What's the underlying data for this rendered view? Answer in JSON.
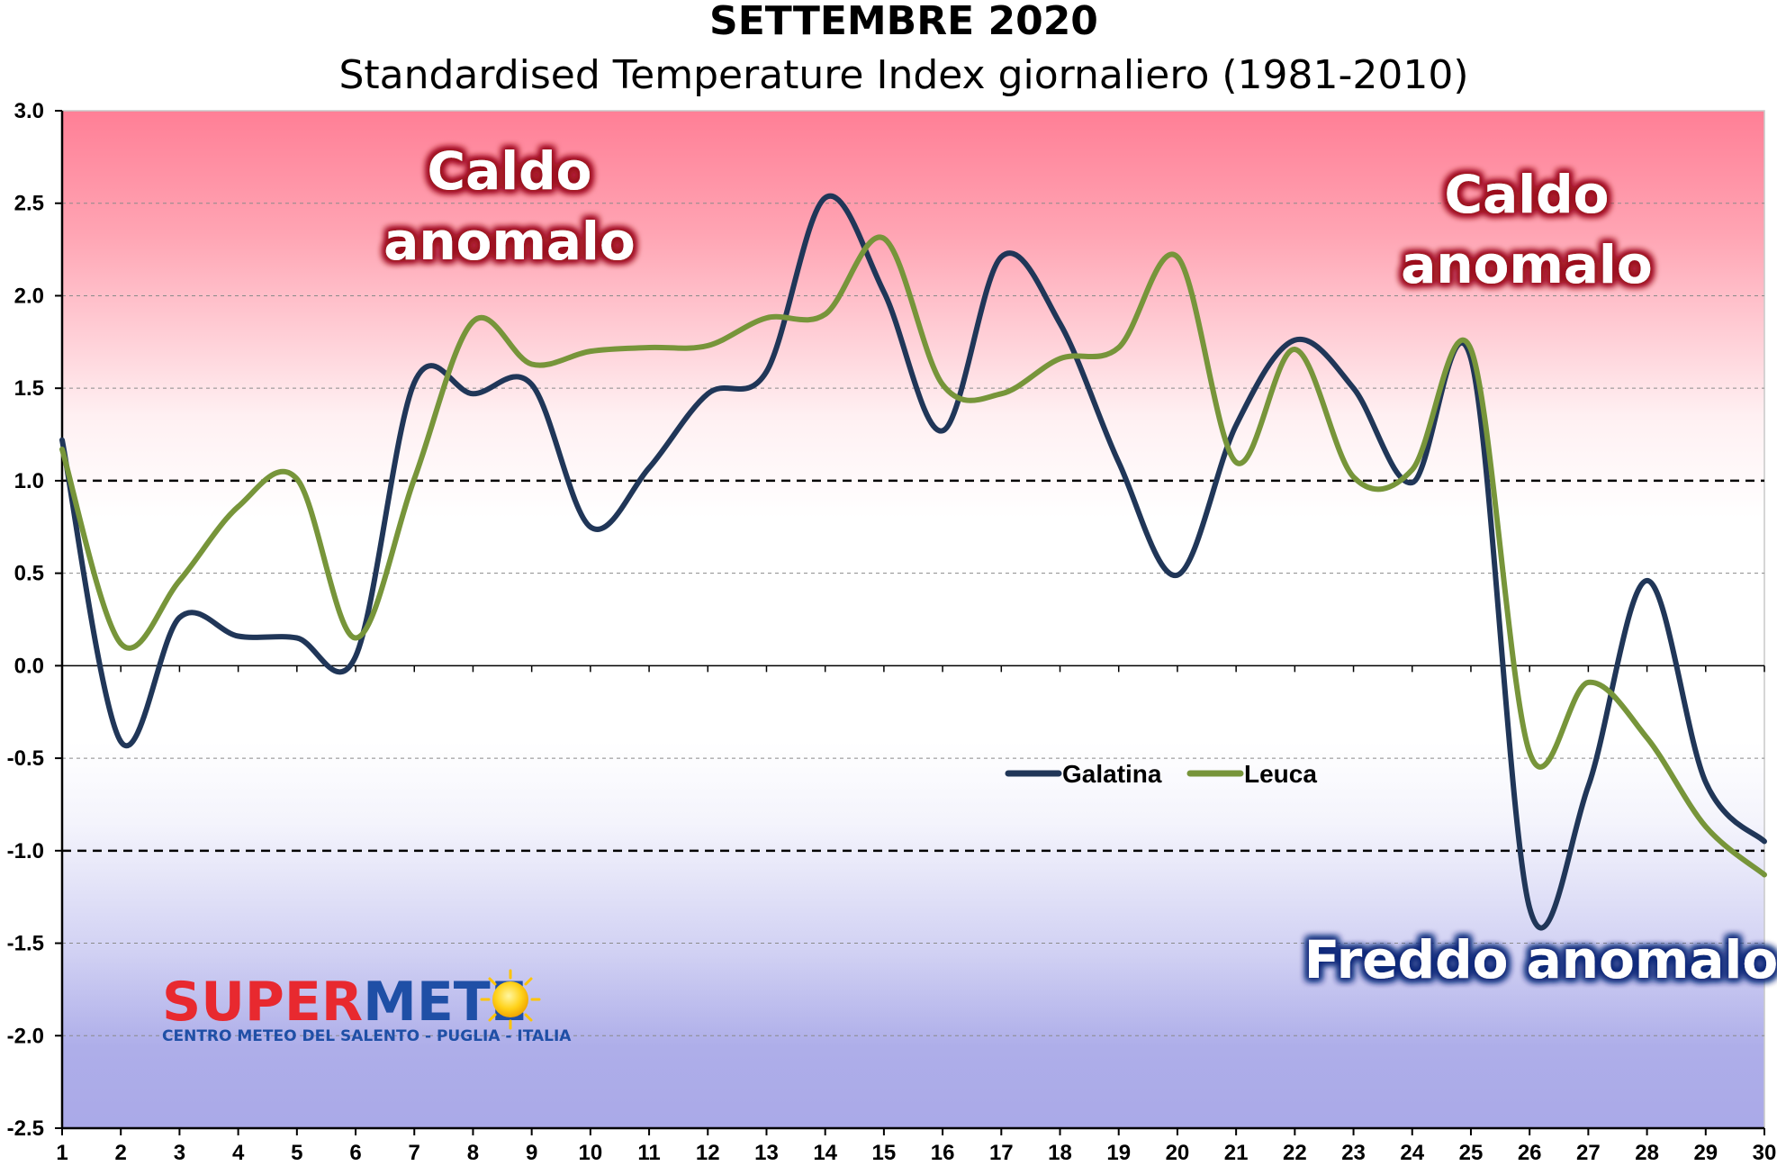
{
  "title": "SETTEMBRE 2020",
  "subtitle": "Standardised Temperature Index giornaliero (1981-2010)",
  "zones": {
    "warm_label_line1": "Caldo",
    "warm_label_line2": "anomalo",
    "cold_label": "Freddo anomalo"
  },
  "logo": {
    "part1": "SUPER",
    "part2": "METE",
    "subtitle": "CENTRO METEO DEL SALENTO - PUGLIA - ITALIA"
  },
  "colors": {
    "galatina": "#203658",
    "leuca": "#77953a",
    "warm_top": "#ff7f96",
    "cold_bottom": "#aaa9e8",
    "warm_glow": "#9b0a1e",
    "cold_glow": "#0d2a7a"
  },
  "chart_data": {
    "type": "line",
    "x": [
      1,
      2,
      3,
      4,
      5,
      6,
      7,
      8,
      9,
      10,
      11,
      12,
      13,
      14,
      15,
      16,
      17,
      18,
      19,
      20,
      21,
      22,
      23,
      24,
      25,
      26,
      27,
      28,
      29,
      30
    ],
    "xlim": [
      1,
      30
    ],
    "ylim": [
      -2.5,
      3.0
    ],
    "yticks": [
      "3.0",
      "2.5",
      "2.0",
      "1.5",
      "1.0",
      "0.5",
      "0.0",
      "-0.5",
      "-1.0",
      "-1.5",
      "-2.0",
      "-2.5"
    ],
    "threshold_lines": [
      1.0,
      -1.0
    ],
    "grid": true,
    "legend_position": "center-right",
    "series": [
      {
        "name": "Galatina",
        "values": [
          1.22,
          -0.41,
          0.26,
          0.16,
          0.15,
          0.05,
          1.53,
          1.47,
          1.52,
          0.75,
          1.07,
          1.47,
          1.59,
          2.53,
          2.02,
          1.27,
          2.21,
          1.85,
          1.1,
          0.49,
          1.3,
          1.76,
          1.5,
          0.99,
          1.66,
          -1.31,
          -0.65,
          0.46,
          -0.63,
          -0.95
        ]
      },
      {
        "name": "Leuca",
        "values": [
          1.17,
          0.12,
          0.46,
          0.86,
          1.01,
          0.15,
          1.01,
          1.86,
          1.63,
          1.7,
          1.72,
          1.73,
          1.88,
          1.9,
          2.31,
          1.52,
          1.47,
          1.66,
          1.72,
          2.21,
          1.1,
          1.71,
          1.02,
          1.06,
          1.71,
          -0.47,
          -0.09,
          -0.39,
          -0.87,
          -1.13
        ]
      }
    ]
  }
}
